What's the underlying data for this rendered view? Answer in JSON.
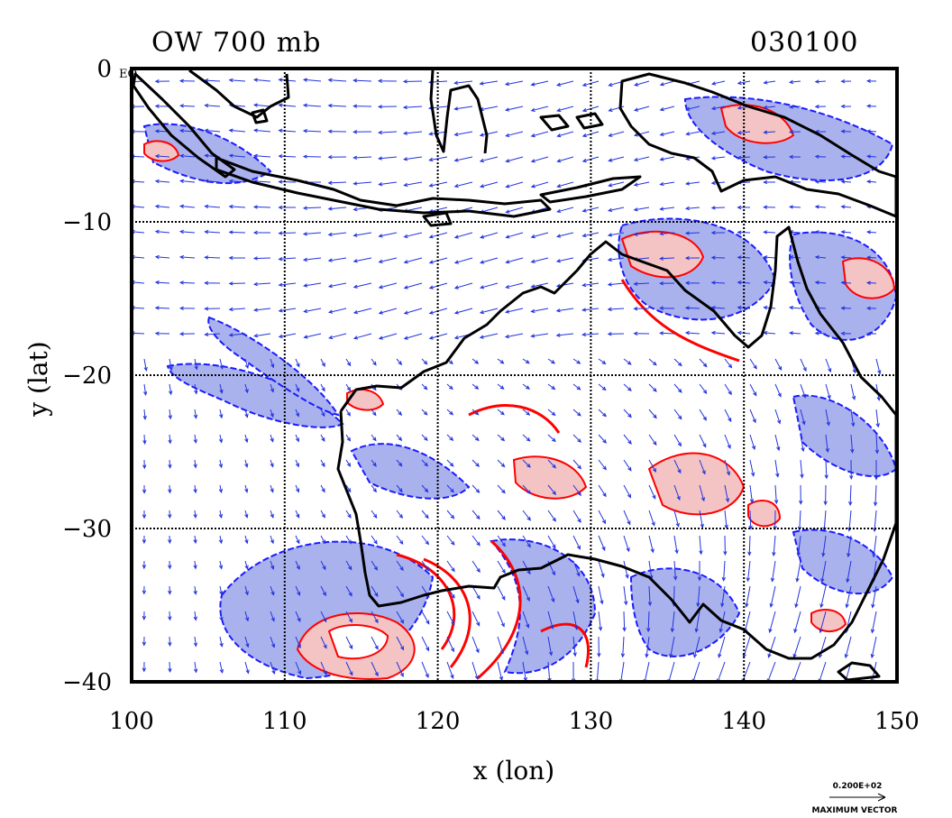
{
  "title_left": "OW 700 mb",
  "title_right": "030100",
  "corner_label": "EQ",
  "x_axis": {
    "label": "x (lon)",
    "range": [
      100,
      150
    ],
    "ticks": [
      "100",
      "110",
      "120",
      "130",
      "140",
      "150"
    ]
  },
  "y_axis": {
    "label": "y (lat)",
    "range": [
      -40,
      0
    ],
    "ticks": [
      "0",
      "−10",
      "−20",
      "−30",
      "−40"
    ]
  },
  "vector_key": {
    "value": "0.200E+02",
    "label": "MAXIMUM VECTOR"
  },
  "colors": {
    "positive_contour": "#ff0000",
    "positive_fill": "#f4c4c4",
    "negative_contour": "#1a1aff",
    "negative_fill": "#aab2ee",
    "coastline": "#000000",
    "grid": "#000000",
    "wind_vectors": "#2233dd"
  },
  "map_features": {
    "coastline": true,
    "lat_lon_grid": true,
    "wind_vectors": true,
    "shaded_contours": true
  }
}
